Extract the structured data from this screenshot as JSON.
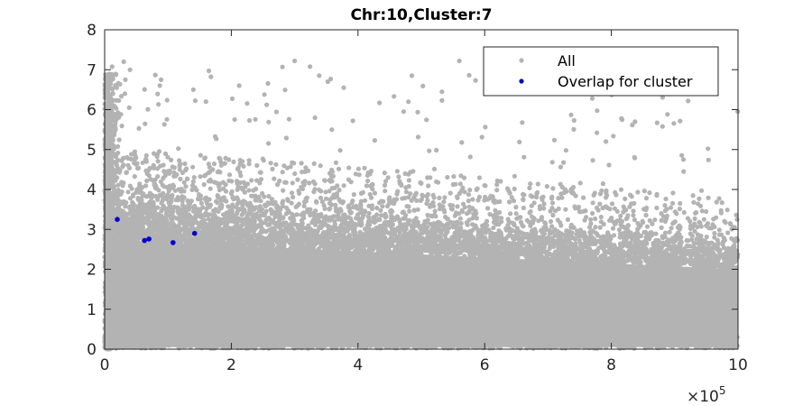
{
  "chart_data": {
    "type": "scatter",
    "title": "Chr:10,Cluster:7",
    "xlabel": "",
    "ylabel": "",
    "xlim": [
      0,
      1000000
    ],
    "ylim": [
      0,
      8
    ],
    "x_ticks": [
      0,
      200000,
      400000,
      600000,
      800000,
      1000000
    ],
    "x_tick_labels": [
      "0",
      "2",
      "4",
      "6",
      "8",
      "10"
    ],
    "x_multiplier": "×10",
    "x_multiplier_exponent": "5",
    "y_ticks": [
      0,
      1,
      2,
      3,
      4,
      5,
      6,
      7,
      8
    ],
    "y_tick_labels": [
      "0",
      "1",
      "2",
      "3",
      "4",
      "5",
      "6",
      "7",
      "8"
    ],
    "grid": false,
    "legend_position": "top-right",
    "series": [
      {
        "name": "All",
        "color": "#b3b3b3",
        "density": "very dense cloud concentrated between y=0 and y=3, sparser outliers up to y≈7.2",
        "outliers": [
          [
            30000,
            7.2
          ],
          [
            32000,
            6.4
          ],
          [
            87000,
            6.6
          ],
          [
            140000,
            6.5
          ],
          [
            300000,
            7.22
          ],
          [
            485000,
            6.85
          ],
          [
            560000,
            7.22
          ],
          [
            880000,
            6.5
          ],
          [
            40000,
            7.0
          ],
          [
            160000,
            6.2
          ]
        ]
      },
      {
        "name": "Overlap for cluster",
        "color": "#0000cc",
        "points": [
          [
            20000,
            3.25
          ],
          [
            63000,
            2.72
          ],
          [
            70000,
            2.76
          ],
          [
            108000,
            2.67
          ],
          [
            142000,
            2.9
          ]
        ]
      }
    ]
  }
}
